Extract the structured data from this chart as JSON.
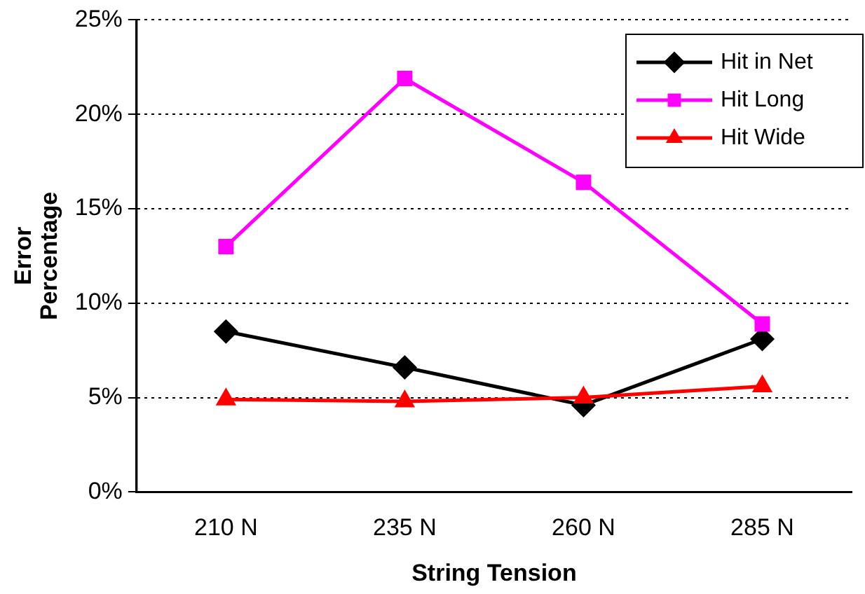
{
  "chart_data": {
    "type": "line",
    "xlabel": "String Tension",
    "ylabel": "Error Percentage",
    "categories": [
      "210 N",
      "235 N",
      "260 N",
      "285 N"
    ],
    "series": [
      {
        "name": "Hit in Net",
        "color": "#000000",
        "marker": "diamond",
        "values": [
          8.5,
          6.6,
          4.6,
          8.1
        ]
      },
      {
        "name": "Hit Long",
        "color": "#ff00ff",
        "marker": "square",
        "values": [
          13.0,
          21.9,
          16.4,
          8.9
        ]
      },
      {
        "name": "Hit Wide",
        "color": "#ff0000",
        "marker": "triangle",
        "values": [
          4.9,
          4.8,
          5.0,
          5.6
        ]
      }
    ],
    "ylim": [
      0,
      25
    ],
    "yticks": [
      {
        "value": 0,
        "label": "0%"
      },
      {
        "value": 5,
        "label": "5%"
      },
      {
        "value": 10,
        "label": "10%"
      },
      {
        "value": 15,
        "label": "15%"
      },
      {
        "value": 20,
        "label": "20%"
      },
      {
        "value": 25,
        "label": "25%"
      }
    ],
    "grid": "y",
    "legend": "top right",
    "line_style": "solid"
  }
}
